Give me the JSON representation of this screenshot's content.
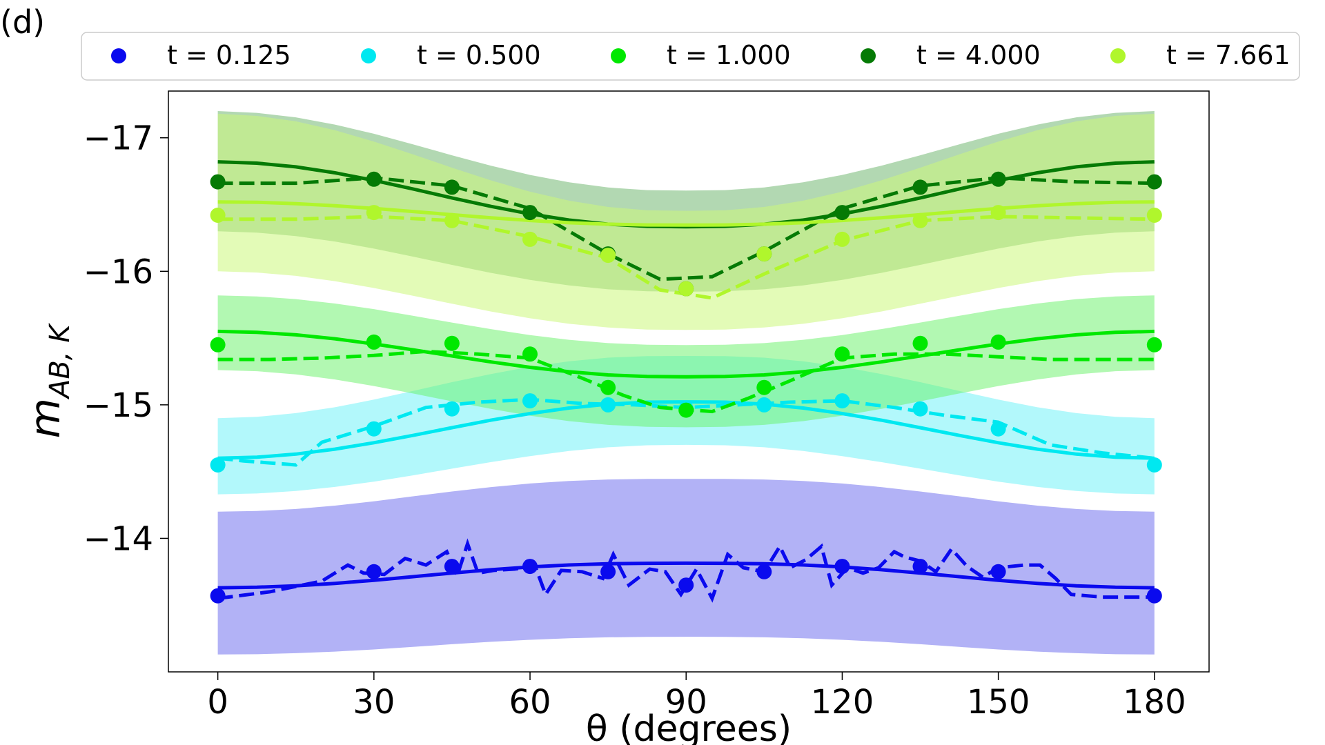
{
  "chart_data": {
    "type": "line",
    "panel_label": "(d)",
    "xlabel": "θ (degrees)",
    "ylabel": {
      "base": "m",
      "subscript": "AB, K"
    },
    "xlim": [
      -9.5,
      190.5
    ],
    "ylim": [
      -13,
      -17.35
    ],
    "x_ticks": [
      0,
      30,
      60,
      90,
      120,
      150,
      180
    ],
    "y_ticks": [
      -17,
      -16,
      -15,
      -14
    ],
    "y_tick_labels": [
      "−17",
      "−16",
      "−15",
      "−14"
    ],
    "legend_position": "top",
    "grid": false,
    "x_fine": [
      0,
      7.5,
      15,
      22.5,
      30,
      37.5,
      45,
      52.5,
      60,
      67.5,
      75,
      82.5,
      90,
      97.5,
      105,
      112.5,
      120,
      127.5,
      135,
      142.5,
      150,
      157.5,
      165,
      172.5,
      180
    ],
    "series": [
      {
        "name": "t = 0.125",
        "legend_label": "t = 0.125",
        "color": "#0a0aee",
        "band_color": "#6666ee",
        "band_opacity": 0.5,
        "points_x": [
          0,
          30,
          45,
          60,
          75,
          90,
          105,
          120,
          135,
          150,
          180
        ],
        "points_y": [
          -13.57,
          -13.75,
          -13.79,
          -13.79,
          -13.75,
          -13.65,
          -13.75,
          -13.79,
          -13.79,
          -13.75,
          -13.57
        ],
        "model": [
          -13.63,
          -13.634,
          -13.645,
          -13.663,
          -13.686,
          -13.713,
          -13.74,
          -13.765,
          -13.786,
          -13.801,
          -13.81,
          -13.813,
          -13.814,
          -13.813,
          -13.81,
          -13.801,
          -13.786,
          -13.765,
          -13.74,
          -13.713,
          -13.686,
          -13.663,
          -13.645,
          -13.634,
          -13.63
        ],
        "band_upper": [
          -14.2,
          -14.205,
          -14.22,
          -14.245,
          -14.277,
          -14.315,
          -14.351,
          -14.384,
          -14.411,
          -14.43,
          -14.441,
          -14.445,
          -14.445,
          -14.445,
          -14.441,
          -14.43,
          -14.411,
          -14.384,
          -14.351,
          -14.315,
          -14.277,
          -14.245,
          -14.22,
          -14.205,
          -14.2
        ],
        "band_lower": [
          -13.13,
          -13.132,
          -13.14,
          -13.152,
          -13.168,
          -13.187,
          -13.207,
          -13.225,
          -13.24,
          -13.252,
          -13.259,
          -13.262,
          -13.263,
          -13.262,
          -13.259,
          -13.252,
          -13.24,
          -13.225,
          -13.207,
          -13.187,
          -13.168,
          -13.152,
          -13.14,
          -13.132,
          -13.13
        ],
        "noisy_x": [
          0,
          10,
          20,
          25,
          28,
          32,
          36,
          40,
          44,
          46,
          48,
          50,
          53,
          57,
          61,
          63,
          66,
          70,
          74,
          76,
          79,
          83,
          86,
          89,
          92,
          95,
          98,
          101,
          105,
          108,
          110,
          113,
          116,
          118,
          121,
          124,
          127,
          130,
          132,
          135,
          138,
          141,
          144,
          147,
          150,
          155,
          158,
          161,
          164,
          170,
          180
        ],
        "noisy_y": [
          -13.55,
          -13.6,
          -13.68,
          -13.8,
          -13.74,
          -13.73,
          -13.85,
          -13.8,
          -13.9,
          -13.72,
          -13.96,
          -13.74,
          -13.76,
          -13.77,
          -13.79,
          -13.58,
          -13.76,
          -13.75,
          -13.7,
          -13.88,
          -13.65,
          -13.77,
          -13.75,
          -13.58,
          -13.77,
          -13.55,
          -13.88,
          -13.78,
          -13.75,
          -13.94,
          -13.78,
          -13.84,
          -13.94,
          -13.65,
          -13.78,
          -13.74,
          -13.78,
          -13.9,
          -13.86,
          -13.83,
          -13.75,
          -13.92,
          -13.79,
          -13.71,
          -13.78,
          -13.8,
          -13.8,
          -13.7,
          -13.58,
          -13.56,
          -13.56
        ]
      },
      {
        "name": "t = 0.500",
        "legend_label": "t = 0.500",
        "color": "#00e8f0",
        "band_color": "#66f2f7",
        "band_opacity": 0.5,
        "points_x": [
          0,
          30,
          45,
          60,
          75,
          90,
          105,
          120,
          135,
          150,
          180
        ],
        "points_y": [
          -14.55,
          -14.82,
          -14.97,
          -15.03,
          -15.0,
          -14.97,
          -15.0,
          -15.03,
          -14.97,
          -14.82,
          -14.55
        ],
        "model": [
          -14.6,
          -14.608,
          -14.631,
          -14.668,
          -14.716,
          -14.771,
          -14.829,
          -14.885,
          -14.935,
          -14.976,
          -15.005,
          -15.02,
          -15.022,
          -15.02,
          -15.005,
          -14.976,
          -14.935,
          -14.885,
          -14.829,
          -14.771,
          -14.716,
          -14.668,
          -14.631,
          -14.608,
          -14.6
        ],
        "band_upper": [
          -14.9,
          -14.91,
          -14.938,
          -14.982,
          -15.039,
          -15.104,
          -15.17,
          -15.231,
          -15.285,
          -15.326,
          -15.353,
          -15.365,
          -15.366,
          -15.365,
          -15.353,
          -15.326,
          -15.285,
          -15.231,
          -15.17,
          -15.104,
          -15.039,
          -14.982,
          -14.938,
          -14.91,
          -14.9
        ],
        "band_lower": [
          -14.33,
          -14.336,
          -14.355,
          -14.385,
          -14.425,
          -14.472,
          -14.522,
          -14.571,
          -14.616,
          -14.654,
          -14.682,
          -14.697,
          -14.7,
          -14.697,
          -14.682,
          -14.654,
          -14.616,
          -14.571,
          -14.522,
          -14.472,
          -14.425,
          -14.385,
          -14.355,
          -14.336,
          -14.33
        ],
        "noisy_x": [
          0,
          5,
          15,
          20,
          25,
          30,
          40,
          50,
          60,
          70,
          80,
          90,
          100,
          110,
          120,
          130,
          140,
          150,
          160,
          170,
          180
        ],
        "noisy_y": [
          -14.6,
          -14.58,
          -14.55,
          -14.72,
          -14.78,
          -14.84,
          -14.98,
          -15.02,
          -15.04,
          -15.01,
          -15.0,
          -14.98,
          -15.0,
          -15.02,
          -15.03,
          -14.98,
          -14.92,
          -14.87,
          -14.7,
          -14.64,
          -14.6
        ]
      },
      {
        "name": "t = 1.000",
        "legend_label": "t = 1.000",
        "color": "#00e800",
        "band_color": "#66f266",
        "band_opacity": 0.5,
        "points_x": [
          0,
          30,
          45,
          60,
          75,
          90,
          105,
          120,
          135,
          150,
          180
        ],
        "points_y": [
          -15.45,
          -15.47,
          -15.46,
          -15.38,
          -15.13,
          -14.96,
          -15.13,
          -15.38,
          -15.46,
          -15.47,
          -15.45
        ],
        "model": [
          -15.55,
          -15.543,
          -15.524,
          -15.495,
          -15.456,
          -15.412,
          -15.366,
          -15.321,
          -15.281,
          -15.248,
          -15.224,
          -15.212,
          -15.21,
          -15.212,
          -15.224,
          -15.248,
          -15.281,
          -15.321,
          -15.366,
          -15.412,
          -15.456,
          -15.495,
          -15.524,
          -15.543,
          -15.55
        ],
        "band_upper": [
          -15.82,
          -15.812,
          -15.792,
          -15.759,
          -15.717,
          -15.667,
          -15.616,
          -15.567,
          -15.522,
          -15.487,
          -15.462,
          -15.45,
          -15.448,
          -15.45,
          -15.462,
          -15.487,
          -15.522,
          -15.567,
          -15.616,
          -15.667,
          -15.717,
          -15.759,
          -15.792,
          -15.812,
          -15.82
        ],
        "band_lower": [
          -15.26,
          -15.252,
          -15.228,
          -15.19,
          -15.141,
          -15.085,
          -15.026,
          -14.97,
          -14.919,
          -14.878,
          -14.85,
          -14.835,
          -14.832,
          -14.835,
          -14.85,
          -14.878,
          -14.919,
          -14.97,
          -15.026,
          -15.085,
          -15.141,
          -15.19,
          -15.228,
          -15.252,
          -15.26
        ],
        "noisy_x": [
          0,
          10,
          20,
          30,
          40,
          50,
          60,
          70,
          78,
          85,
          95,
          102,
          110,
          120,
          130,
          140,
          150,
          160,
          170,
          180
        ],
        "noisy_y": [
          -15.34,
          -15.34,
          -15.35,
          -15.37,
          -15.4,
          -15.38,
          -15.35,
          -15.2,
          -15.07,
          -14.98,
          -14.95,
          -15.05,
          -15.18,
          -15.35,
          -15.38,
          -15.38,
          -15.36,
          -15.34,
          -15.34,
          -15.34
        ],
        "dots_on_top": false
      },
      {
        "name": "t = 4.000",
        "legend_label": "t = 4.000",
        "color": "#057a05",
        "band_color": "#238f23",
        "band_opacity": 0.35,
        "points_x": [
          0,
          30,
          45,
          60,
          75,
          90,
          105,
          120,
          135,
          150,
          180
        ],
        "points_y": [
          -16.67,
          -16.69,
          -16.63,
          -16.44,
          -16.13,
          -15.87,
          -16.13,
          -16.44,
          -16.63,
          -16.69,
          -16.67
        ],
        "model": [
          -16.82,
          -16.81,
          -16.782,
          -16.738,
          -16.681,
          -16.617,
          -16.55,
          -16.486,
          -16.43,
          -16.384,
          -16.353,
          -16.337,
          -16.334,
          -16.337,
          -16.353,
          -16.384,
          -16.43,
          -16.486,
          -16.55,
          -16.617,
          -16.681,
          -16.738,
          -16.782,
          -16.81,
          -16.82
        ],
        "band_upper": [
          -17.2,
          -17.187,
          -17.153,
          -17.099,
          -17.03,
          -16.951,
          -16.869,
          -16.791,
          -16.722,
          -16.667,
          -16.628,
          -16.608,
          -16.605,
          -16.608,
          -16.628,
          -16.667,
          -16.722,
          -16.791,
          -16.869,
          -16.951,
          -17.03,
          -17.099,
          -17.153,
          -17.187,
          -17.2
        ],
        "band_lower": [
          -16.3,
          -16.29,
          -16.264,
          -16.223,
          -16.17,
          -16.11,
          -16.048,
          -15.988,
          -15.936,
          -15.894,
          -15.865,
          -15.85,
          -15.847,
          -15.85,
          -15.865,
          -15.894,
          -15.936,
          -15.988,
          -16.048,
          -16.11,
          -16.17,
          -16.223,
          -16.264,
          -16.29,
          -16.3
        ],
        "noisy_x": [
          0,
          15,
          30,
          45,
          60,
          75,
          85,
          95,
          105,
          120,
          135,
          150,
          165,
          180
        ],
        "noisy_y": [
          -16.66,
          -16.66,
          -16.7,
          -16.64,
          -16.47,
          -16.13,
          -15.94,
          -15.96,
          -16.15,
          -16.47,
          -16.64,
          -16.7,
          -16.67,
          -16.66
        ]
      },
      {
        "name": "t = 7.661",
        "legend_label": "t = 7.661",
        "color": "#b0f62c",
        "band_color": "#ccf77c",
        "band_opacity": 0.55,
        "points_x": [
          0,
          30,
          45,
          60,
          75,
          90,
          105,
          120,
          135,
          150,
          180
        ],
        "points_y": [
          -16.42,
          -16.44,
          -16.38,
          -16.24,
          -16.12,
          -15.87,
          -16.13,
          -16.24,
          -16.38,
          -16.44,
          -16.42
        ],
        "model": [
          -16.52,
          -16.517,
          -16.507,
          -16.491,
          -16.471,
          -16.448,
          -16.424,
          -16.401,
          -16.381,
          -16.364,
          -16.353,
          -16.347,
          -16.346,
          -16.347,
          -16.353,
          -16.364,
          -16.381,
          -16.401,
          -16.424,
          -16.448,
          -16.471,
          -16.491,
          -16.507,
          -16.517,
          -16.52
        ],
        "band_upper": [
          -17.18,
          -17.164,
          -17.123,
          -17.057,
          -16.972,
          -16.876,
          -16.776,
          -16.681,
          -16.596,
          -16.529,
          -16.482,
          -16.457,
          -16.453,
          -16.457,
          -16.482,
          -16.529,
          -16.596,
          -16.681,
          -16.776,
          -16.876,
          -16.972,
          -17.057,
          -17.123,
          -17.164,
          -17.18
        ],
        "band_lower": [
          -16.0,
          -15.991,
          -15.966,
          -15.926,
          -15.875,
          -15.817,
          -15.757,
          -15.699,
          -15.648,
          -15.607,
          -15.579,
          -15.564,
          -15.561,
          -15.564,
          -15.579,
          -15.607,
          -15.648,
          -15.699,
          -15.757,
          -15.817,
          -15.875,
          -15.926,
          -15.966,
          -15.991,
          -16.0
        ],
        "noisy_x": [
          0,
          15,
          30,
          45,
          60,
          75,
          85,
          95,
          105,
          120,
          135,
          150,
          165,
          180
        ],
        "noisy_y": [
          -16.39,
          -16.39,
          -16.41,
          -16.38,
          -16.26,
          -16.1,
          -15.86,
          -15.8,
          -15.98,
          -16.23,
          -16.38,
          -16.41,
          -16.4,
          -16.39
        ]
      }
    ]
  }
}
